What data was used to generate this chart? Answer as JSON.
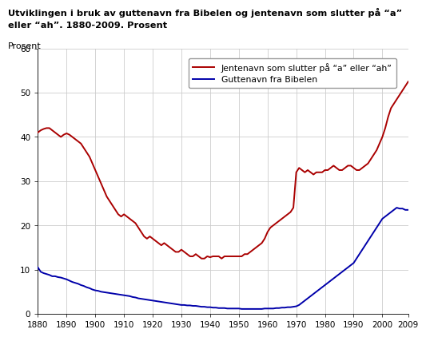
{
  "title_line1": "Utviklingen i bruk av guttenavn fra Bibelen og jentenavn som slutter på “a”",
  "title_line2": "eller “ah”. 1880-2009. Prosent",
  "ylabel": "Prosent",
  "xlim": [
    1880,
    2009
  ],
  "ylim": [
    0,
    60
  ],
  "yticks": [
    0,
    10,
    20,
    30,
    40,
    50,
    60
  ],
  "xticks": [
    1880,
    1890,
    1900,
    1910,
    1920,
    1930,
    1940,
    1950,
    1960,
    1970,
    1980,
    1990,
    2000,
    2009
  ],
  "red_label": "Jentenavn som slutter på “a” eller “ah”",
  "blue_label": "Guttenavn fra Bibelen",
  "red_color": "#aa0000",
  "blue_color": "#0000aa",
  "background_color": "#ffffff",
  "grid_color": "#cccccc",
  "red_data": {
    "years": [
      1880,
      1881,
      1882,
      1883,
      1884,
      1885,
      1886,
      1887,
      1888,
      1889,
      1890,
      1891,
      1892,
      1893,
      1894,
      1895,
      1896,
      1897,
      1898,
      1899,
      1900,
      1901,
      1902,
      1903,
      1904,
      1905,
      1906,
      1907,
      1908,
      1909,
      1910,
      1911,
      1912,
      1913,
      1914,
      1915,
      1916,
      1917,
      1918,
      1919,
      1920,
      1921,
      1922,
      1923,
      1924,
      1925,
      1926,
      1927,
      1928,
      1929,
      1930,
      1931,
      1932,
      1933,
      1934,
      1935,
      1936,
      1937,
      1938,
      1939,
      1940,
      1941,
      1942,
      1943,
      1944,
      1945,
      1946,
      1947,
      1948,
      1949,
      1950,
      1951,
      1952,
      1953,
      1954,
      1955,
      1956,
      1957,
      1958,
      1959,
      1960,
      1961,
      1962,
      1963,
      1964,
      1965,
      1966,
      1967,
      1968,
      1969,
      1970,
      1971,
      1972,
      1973,
      1974,
      1975,
      1976,
      1977,
      1978,
      1979,
      1980,
      1981,
      1982,
      1983,
      1984,
      1985,
      1986,
      1987,
      1988,
      1989,
      1990,
      1991,
      1992,
      1993,
      1994,
      1995,
      1996,
      1997,
      1998,
      1999,
      2000,
      2001,
      2002,
      2003,
      2004,
      2005,
      2006,
      2007,
      2008,
      2009
    ],
    "values": [
      41.0,
      41.5,
      41.8,
      42.0,
      42.0,
      41.5,
      41.0,
      40.5,
      40.0,
      40.5,
      40.8,
      40.5,
      40.0,
      39.5,
      39.0,
      38.5,
      37.5,
      36.5,
      35.5,
      34.0,
      32.5,
      31.0,
      29.5,
      28.0,
      26.5,
      25.5,
      24.5,
      23.5,
      22.5,
      22.0,
      22.5,
      22.0,
      21.5,
      21.0,
      20.5,
      19.5,
      18.5,
      17.5,
      17.0,
      17.5,
      17.0,
      16.5,
      16.0,
      15.5,
      16.0,
      15.5,
      15.0,
      14.5,
      14.0,
      14.0,
      14.5,
      14.0,
      13.5,
      13.0,
      13.0,
      13.5,
      13.0,
      12.5,
      12.5,
      13.0,
      12.8,
      13.0,
      13.0,
      13.0,
      12.5,
      13.0,
      13.0,
      13.0,
      13.0,
      13.0,
      13.0,
      13.0,
      13.5,
      13.5,
      14.0,
      14.5,
      15.0,
      15.5,
      16.0,
      17.0,
      18.5,
      19.5,
      20.0,
      20.5,
      21.0,
      21.5,
      22.0,
      22.5,
      23.0,
      24.0,
      32.0,
      33.0,
      32.5,
      32.0,
      32.5,
      32.0,
      31.5,
      32.0,
      32.0,
      32.0,
      32.5,
      32.5,
      33.0,
      33.5,
      33.0,
      32.5,
      32.5,
      33.0,
      33.5,
      33.5,
      33.0,
      32.5,
      32.5,
      33.0,
      33.5,
      34.0,
      35.0,
      36.0,
      37.0,
      38.5,
      40.0,
      42.0,
      44.5,
      46.5,
      47.5,
      48.5,
      49.5,
      50.5,
      51.5,
      52.5
    ]
  },
  "blue_data": {
    "years": [
      1880,
      1881,
      1882,
      1883,
      1884,
      1885,
      1886,
      1887,
      1888,
      1889,
      1890,
      1891,
      1892,
      1893,
      1894,
      1895,
      1896,
      1897,
      1898,
      1899,
      1900,
      1901,
      1902,
      1903,
      1904,
      1905,
      1906,
      1907,
      1908,
      1909,
      1910,
      1911,
      1912,
      1913,
      1914,
      1915,
      1916,
      1917,
      1918,
      1919,
      1920,
      1921,
      1922,
      1923,
      1924,
      1925,
      1926,
      1927,
      1928,
      1929,
      1930,
      1931,
      1932,
      1933,
      1934,
      1935,
      1936,
      1937,
      1938,
      1939,
      1940,
      1941,
      1942,
      1943,
      1944,
      1945,
      1946,
      1947,
      1948,
      1949,
      1950,
      1951,
      1952,
      1953,
      1954,
      1955,
      1956,
      1957,
      1958,
      1959,
      1960,
      1961,
      1962,
      1963,
      1964,
      1965,
      1966,
      1967,
      1968,
      1969,
      1970,
      1971,
      1972,
      1973,
      1974,
      1975,
      1976,
      1977,
      1978,
      1979,
      1980,
      1981,
      1982,
      1983,
      1984,
      1985,
      1986,
      1987,
      1988,
      1989,
      1990,
      1991,
      1992,
      1993,
      1994,
      1995,
      1996,
      1997,
      1998,
      1999,
      2000,
      2001,
      2002,
      2003,
      2004,
      2005,
      2006,
      2007,
      2008,
      2009
    ],
    "values": [
      10.5,
      9.5,
      9.2,
      9.0,
      8.8,
      8.5,
      8.5,
      8.3,
      8.2,
      8.0,
      7.8,
      7.5,
      7.2,
      7.0,
      6.8,
      6.5,
      6.3,
      6.0,
      5.8,
      5.5,
      5.3,
      5.2,
      5.0,
      4.9,
      4.8,
      4.7,
      4.6,
      4.5,
      4.4,
      4.3,
      4.2,
      4.1,
      4.0,
      3.8,
      3.7,
      3.5,
      3.4,
      3.3,
      3.2,
      3.1,
      3.0,
      2.9,
      2.8,
      2.7,
      2.6,
      2.5,
      2.4,
      2.3,
      2.2,
      2.1,
      2.0,
      2.0,
      1.9,
      1.9,
      1.8,
      1.8,
      1.7,
      1.6,
      1.6,
      1.5,
      1.5,
      1.4,
      1.4,
      1.3,
      1.3,
      1.3,
      1.2,
      1.2,
      1.2,
      1.2,
      1.2,
      1.1,
      1.1,
      1.1,
      1.1,
      1.1,
      1.1,
      1.1,
      1.1,
      1.2,
      1.2,
      1.2,
      1.2,
      1.3,
      1.3,
      1.4,
      1.4,
      1.5,
      1.5,
      1.6,
      1.7,
      2.0,
      2.5,
      3.0,
      3.5,
      4.0,
      4.5,
      5.0,
      5.5,
      6.0,
      6.5,
      7.0,
      7.5,
      8.0,
      8.5,
      9.0,
      9.5,
      10.0,
      10.5,
      11.0,
      11.5,
      12.5,
      13.5,
      14.5,
      15.5,
      16.5,
      17.5,
      18.5,
      19.5,
      20.5,
      21.5,
      22.0,
      22.5,
      23.0,
      23.5,
      24.0,
      23.8,
      23.8,
      23.5,
      23.5
    ]
  }
}
